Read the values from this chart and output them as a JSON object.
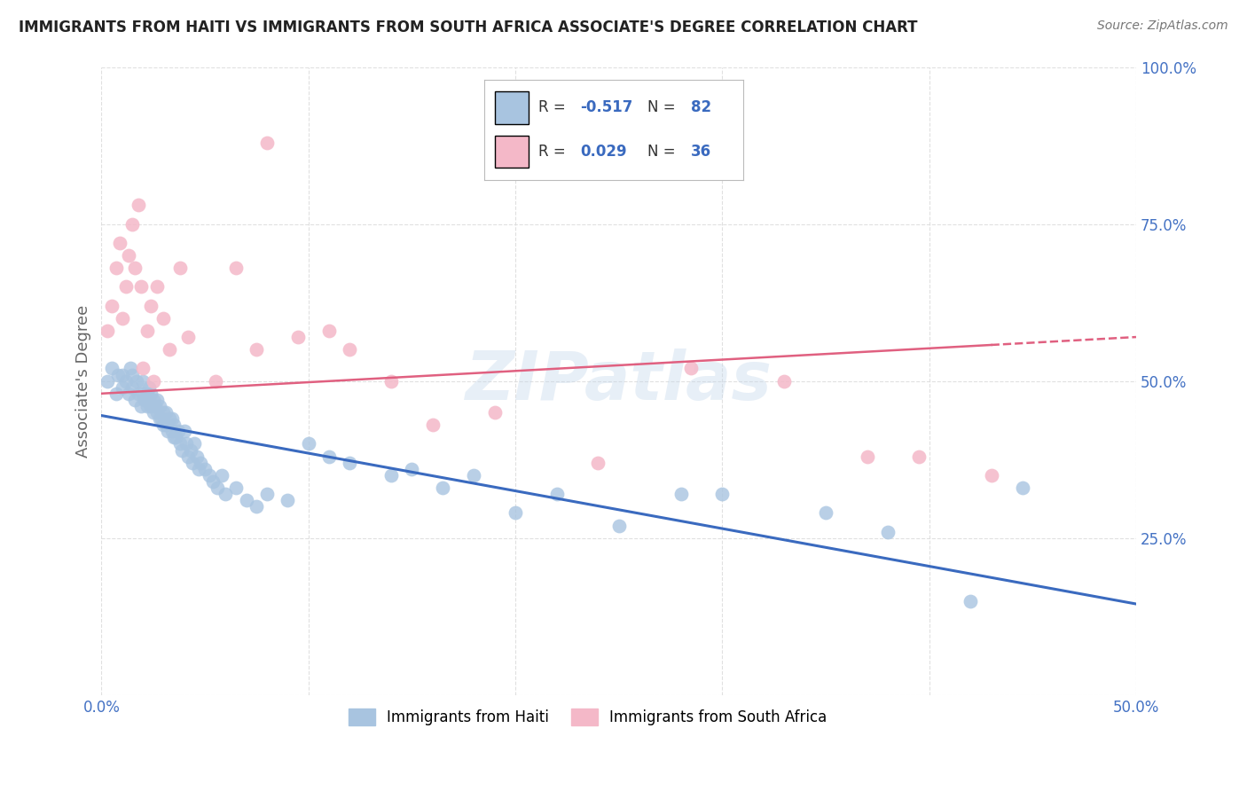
{
  "title": "IMMIGRANTS FROM HAITI VS IMMIGRANTS FROM SOUTH AFRICA ASSOCIATE'S DEGREE CORRELATION CHART",
  "source": "Source: ZipAtlas.com",
  "ylabel": "Associate's Degree",
  "xlim": [
    0.0,
    0.5
  ],
  "ylim": [
    0.0,
    1.0
  ],
  "xticks": [
    0.0,
    0.1,
    0.2,
    0.3,
    0.4,
    0.5
  ],
  "yticks": [
    0.0,
    0.25,
    0.5,
    0.75,
    1.0
  ],
  "xticklabels": [
    "0.0%",
    "",
    "",
    "",
    "",
    "50.0%"
  ],
  "yticklabels": [
    "",
    "25.0%",
    "50.0%",
    "75.0%",
    "100.0%"
  ],
  "haiti_color": "#a8c4e0",
  "sa_color": "#f4b8c8",
  "haiti_line_color": "#3a6abf",
  "sa_line_color": "#e06080",
  "haiti_R": -0.517,
  "haiti_N": 82,
  "sa_R": 0.029,
  "sa_N": 36,
  "haiti_intercept": 0.445,
  "haiti_slope": -0.6,
  "sa_intercept": 0.48,
  "sa_slope": 0.18,
  "watermark": "ZIPatlas",
  "background_color": "#ffffff",
  "grid_color": "#dddddd",
  "haiti_x": [
    0.003,
    0.005,
    0.007,
    0.008,
    0.01,
    0.01,
    0.012,
    0.013,
    0.014,
    0.015,
    0.015,
    0.016,
    0.017,
    0.018,
    0.019,
    0.02,
    0.02,
    0.021,
    0.022,
    0.022,
    0.023,
    0.023,
    0.024,
    0.024,
    0.025,
    0.025,
    0.026,
    0.027,
    0.027,
    0.028,
    0.028,
    0.029,
    0.03,
    0.03,
    0.031,
    0.031,
    0.032,
    0.033,
    0.034,
    0.034,
    0.035,
    0.035,
    0.036,
    0.037,
    0.038,
    0.039,
    0.04,
    0.041,
    0.042,
    0.043,
    0.044,
    0.045,
    0.046,
    0.047,
    0.048,
    0.05,
    0.052,
    0.054,
    0.056,
    0.058,
    0.06,
    0.065,
    0.07,
    0.075,
    0.08,
    0.09,
    0.1,
    0.11,
    0.12,
    0.14,
    0.15,
    0.165,
    0.18,
    0.2,
    0.22,
    0.25,
    0.28,
    0.3,
    0.35,
    0.38,
    0.42,
    0.445
  ],
  "haiti_y": [
    0.5,
    0.52,
    0.48,
    0.51,
    0.49,
    0.51,
    0.5,
    0.48,
    0.52,
    0.49,
    0.51,
    0.47,
    0.5,
    0.48,
    0.46,
    0.5,
    0.48,
    0.47,
    0.48,
    0.46,
    0.49,
    0.47,
    0.46,
    0.48,
    0.47,
    0.45,
    0.46,
    0.45,
    0.47,
    0.44,
    0.46,
    0.44,
    0.43,
    0.45,
    0.43,
    0.45,
    0.42,
    0.44,
    0.42,
    0.44,
    0.41,
    0.43,
    0.41,
    0.42,
    0.4,
    0.39,
    0.42,
    0.4,
    0.38,
    0.39,
    0.37,
    0.4,
    0.38,
    0.36,
    0.37,
    0.36,
    0.35,
    0.34,
    0.33,
    0.35,
    0.32,
    0.33,
    0.31,
    0.3,
    0.32,
    0.31,
    0.4,
    0.38,
    0.37,
    0.35,
    0.36,
    0.33,
    0.35,
    0.29,
    0.32,
    0.27,
    0.32,
    0.32,
    0.29,
    0.26,
    0.15,
    0.33
  ],
  "sa_x": [
    0.003,
    0.005,
    0.007,
    0.009,
    0.01,
    0.012,
    0.013,
    0.015,
    0.016,
    0.018,
    0.019,
    0.02,
    0.022,
    0.024,
    0.025,
    0.027,
    0.03,
    0.033,
    0.038,
    0.042,
    0.055,
    0.065,
    0.075,
    0.08,
    0.095,
    0.11,
    0.12,
    0.14,
    0.16,
    0.19,
    0.24,
    0.285,
    0.33,
    0.37,
    0.395,
    0.43
  ],
  "sa_y": [
    0.58,
    0.62,
    0.68,
    0.72,
    0.6,
    0.65,
    0.7,
    0.75,
    0.68,
    0.78,
    0.65,
    0.52,
    0.58,
    0.62,
    0.5,
    0.65,
    0.6,
    0.55,
    0.68,
    0.57,
    0.5,
    0.68,
    0.55,
    0.88,
    0.57,
    0.58,
    0.55,
    0.5,
    0.43,
    0.45,
    0.37,
    0.52,
    0.5,
    0.38,
    0.38,
    0.35
  ]
}
